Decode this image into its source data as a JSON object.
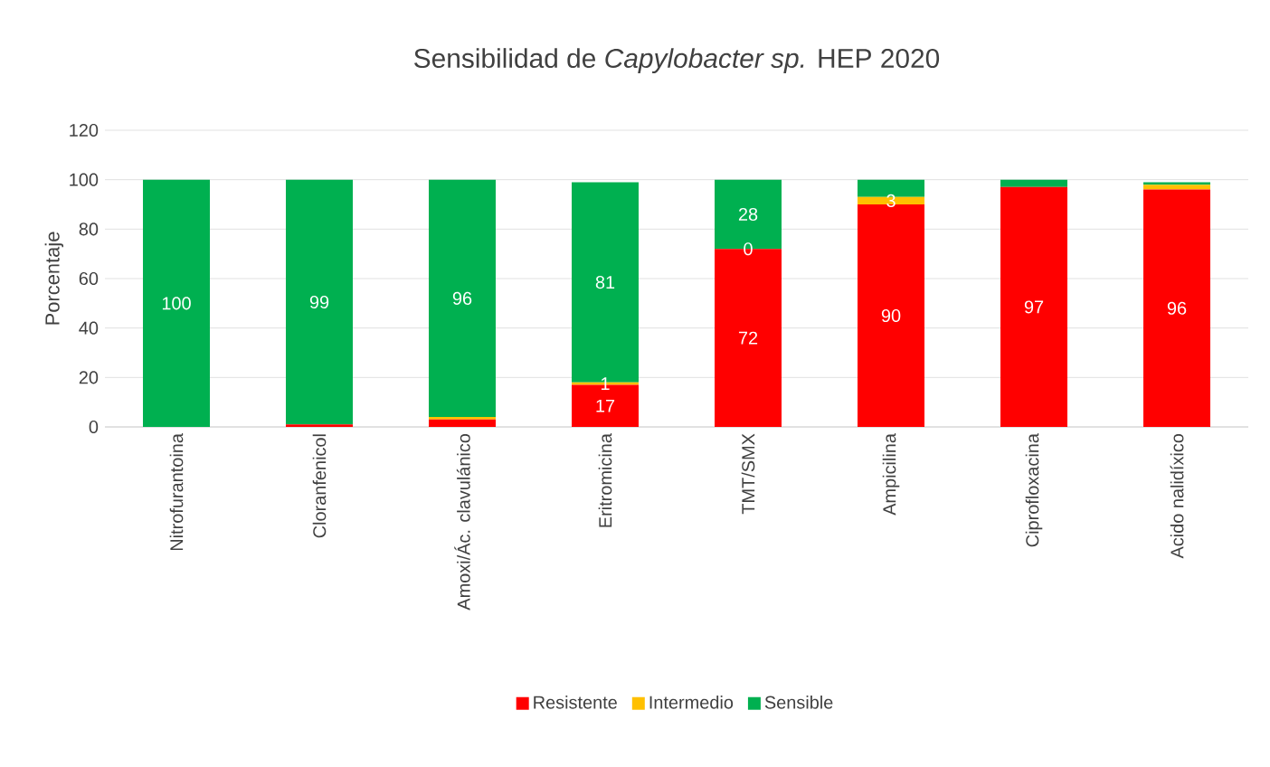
{
  "chart_data": {
    "type": "bar",
    "title": "Sensibilidad de *Capylobacter sp.* HEP 2020",
    "ylabel": "Porcentaje",
    "categories": [
      "Nitrofurantoina",
      "Cloranfenicol",
      "Amoxi/Ác. clavulánico",
      "Eritromicina",
      "TMT/SMX",
      "Ampicilina",
      "Ciprofloxacina",
      "Acido nalidíxico"
    ],
    "series": [
      {
        "name": "Resistente",
        "color": "#ff0000",
        "values": [
          0,
          1,
          3,
          17,
          72,
          90,
          97,
          96
        ],
        "value_labels": [
          null,
          null,
          null,
          "17",
          "72",
          "90",
          "97",
          "96"
        ]
      },
      {
        "name": "Intermedio",
        "color": "#ffc000",
        "values": [
          0,
          0,
          1,
          1,
          0,
          3,
          0,
          2
        ],
        "value_labels": [
          null,
          null,
          null,
          "1",
          null,
          "3",
          null,
          null
        ]
      },
      {
        "name": "Sensible",
        "color": "#00b050",
        "values": [
          100,
          99,
          96,
          81,
          28,
          7,
          3,
          1
        ],
        "value_labels": [
          "100",
          "99",
          "96",
          "81",
          "28",
          null,
          null,
          null
        ]
      }
    ],
    "stacked": true,
    "ylim": [
      0,
      120
    ],
    "yticks": [
      0,
      20,
      40,
      60,
      80,
      100,
      120
    ],
    "grid": "y",
    "legend": "bottom",
    "annotations": [
      {
        "text": "0",
        "x": "TMT/SMX",
        "y": 72
      }
    ]
  }
}
